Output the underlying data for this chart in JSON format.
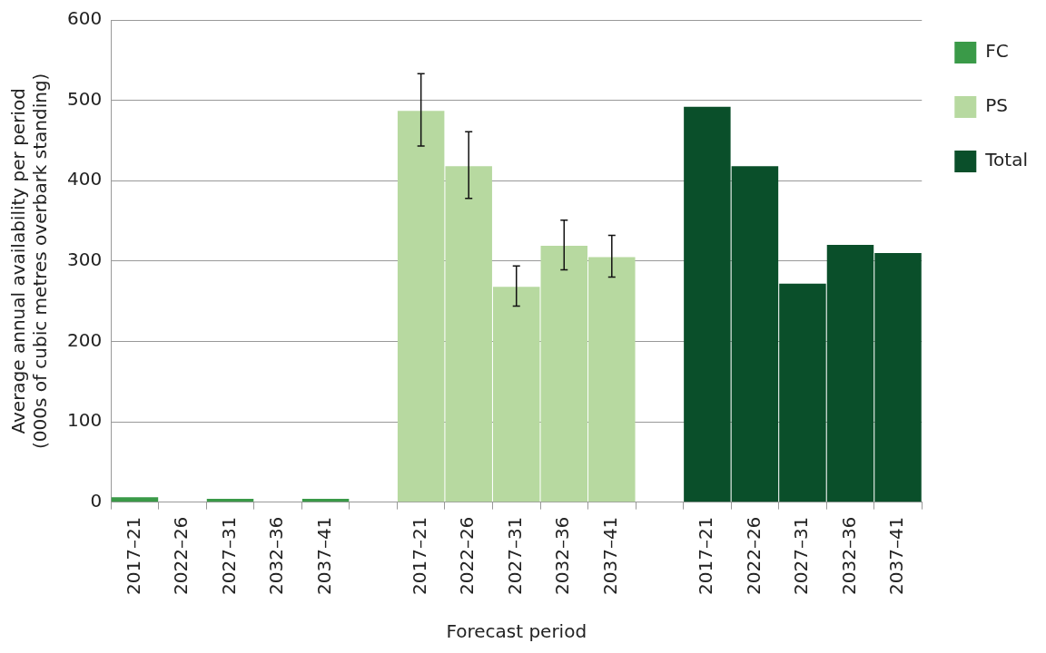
{
  "chart_data": {
    "type": "bar",
    "xlabel": "Forecast period",
    "ylabel": "Average annual availability per period\n(000s of cubic metres overbark standing)",
    "categories": [
      "2017–21",
      "2022–26",
      "2027–31",
      "2032–36",
      "2037–41",
      null,
      "2017–21",
      "2022–26",
      "2027–31",
      "2032–36",
      "2037–41",
      null,
      "2017–21",
      "2022–26",
      "2027–31",
      "2032–36",
      "2037–41"
    ],
    "series": [
      {
        "name": "FC",
        "color": "#3a9a48",
        "values": [
          6,
          0,
          4,
          0,
          4,
          null,
          null,
          null,
          null,
          null,
          null,
          null,
          null,
          null,
          null,
          null,
          null
        ]
      },
      {
        "name": "PS",
        "color": "#b7d9a0",
        "values": [
          null,
          null,
          null,
          null,
          null,
          null,
          487,
          418,
          268,
          319,
          305,
          null,
          null,
          null,
          null,
          null,
          null
        ],
        "errors": [
          null,
          null,
          null,
          null,
          null,
          null,
          [
            443,
            533
          ],
          [
            378,
            461
          ],
          [
            244,
            294
          ],
          [
            289,
            351
          ],
          [
            280,
            332
          ],
          null,
          null,
          null,
          null,
          null,
          null
        ]
      },
      {
        "name": "Total",
        "color": "#0a4f2a",
        "values": [
          null,
          null,
          null,
          null,
          null,
          null,
          null,
          null,
          null,
          null,
          null,
          null,
          492,
          418,
          272,
          320,
          310
        ]
      }
    ],
    "ylim": [
      0,
      600
    ],
    "yticks": [
      0,
      100,
      200,
      300,
      400,
      500,
      600
    ],
    "grid": "y",
    "legend": "right"
  }
}
